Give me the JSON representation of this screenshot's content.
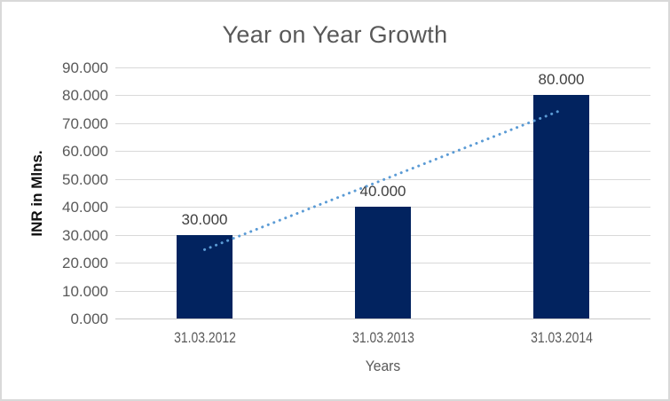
{
  "chart_data": {
    "type": "bar",
    "title": "Year on Year Growth",
    "categories": [
      "31.03.2012",
      "31.03.2013",
      "31.03.2014"
    ],
    "values": [
      30,
      40,
      80
    ],
    "value_labels": [
      "30.000",
      "40.000",
      "80.000"
    ],
    "xlabel": "Years",
    "ylabel": "INR in Mlns.",
    "ylim": [
      0,
      90
    ],
    "ytick_step": 10,
    "ytick_labels": [
      "0.000",
      "10.000",
      "20.000",
      "30.000",
      "40.000",
      "50.000",
      "60.000",
      "70.000",
      "80.000",
      "90.000"
    ],
    "grid": "horizontal",
    "legend": "none",
    "trendline": {
      "type": "linear",
      "style": "dotted",
      "start_value": 25,
      "end_value": 75
    },
    "colors": {
      "bar": "#02235F",
      "trendline": "#5B9BD5",
      "gridline": "#D9D9D9",
      "axis_line": "#C9C9C9",
      "title": "#595959",
      "tick_labels": "#595959",
      "value_labels": "#404040",
      "y_axis_title": "#111111",
      "x_axis_title": "#595959",
      "background": "#FFFFFF",
      "border": "#D9D9D9"
    }
  }
}
